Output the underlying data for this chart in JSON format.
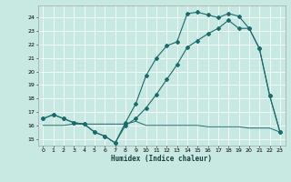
{
  "xlabel": "Humidex (Indice chaleur)",
  "bg_color": "#c8e8e2",
  "line_color": "#1a6b6b",
  "grid_color": "#ffffff",
  "xlim": [
    -0.5,
    23.5
  ],
  "ylim": [
    14.5,
    24.9
  ],
  "xticks": [
    0,
    1,
    2,
    3,
    4,
    5,
    6,
    7,
    8,
    9,
    10,
    11,
    12,
    13,
    14,
    15,
    16,
    17,
    18,
    19,
    20,
    21,
    22,
    23
  ],
  "yticks": [
    15,
    16,
    17,
    18,
    19,
    20,
    21,
    22,
    23,
    24
  ],
  "curve1_x": [
    0,
    1,
    2,
    3,
    4,
    5,
    6,
    7,
    8,
    9,
    10,
    11,
    12,
    13,
    14,
    15,
    16,
    17,
    18,
    19,
    20,
    21,
    22,
    23
  ],
  "curve1_y": [
    16.5,
    16.8,
    16.5,
    16.2,
    16.1,
    15.5,
    15.2,
    14.7,
    16.2,
    17.6,
    19.7,
    21.0,
    21.9,
    22.2,
    24.3,
    24.4,
    24.2,
    24.0,
    24.3,
    24.1,
    23.2,
    21.7,
    18.2,
    15.5
  ],
  "curve2_x": [
    0,
    1,
    2,
    3,
    4,
    5,
    6,
    7,
    8,
    9,
    10,
    11,
    12,
    13,
    14,
    15,
    16,
    17,
    18,
    19,
    20,
    21,
    22,
    23
  ],
  "curve2_y": [
    16.5,
    16.8,
    16.5,
    16.2,
    16.1,
    15.5,
    15.2,
    14.7,
    16.0,
    16.5,
    17.3,
    18.3,
    19.4,
    20.5,
    21.8,
    22.3,
    22.8,
    23.2,
    23.8,
    23.2,
    23.2,
    21.7,
    18.2,
    15.5
  ],
  "curve3_x": [
    0,
    1,
    2,
    3,
    4,
    5,
    6,
    7,
    8,
    9,
    10,
    11,
    12,
    13,
    14,
    15,
    16,
    17,
    18,
    19,
    20,
    21,
    22,
    23
  ],
  "curve3_y": [
    16.0,
    16.0,
    16.0,
    16.1,
    16.1,
    16.1,
    16.1,
    16.1,
    16.1,
    16.3,
    16.0,
    16.0,
    16.0,
    16.0,
    16.0,
    16.0,
    15.9,
    15.9,
    15.9,
    15.9,
    15.8,
    15.8,
    15.8,
    15.5
  ]
}
